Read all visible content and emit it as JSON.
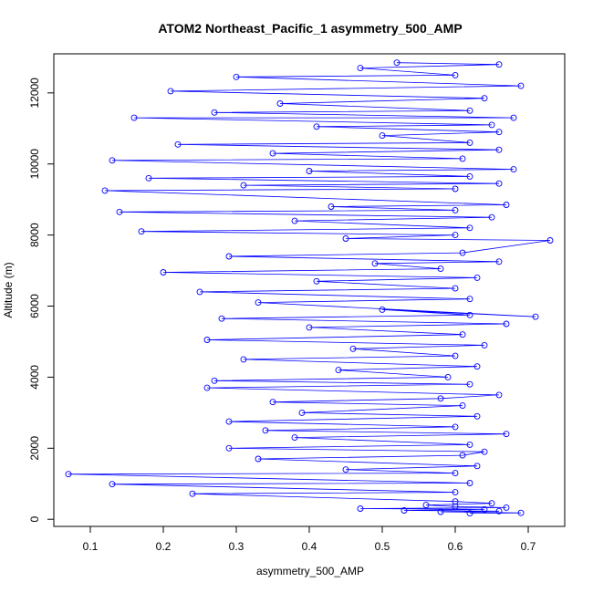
{
  "chart_data": {
    "type": "line",
    "title": "ATOM2 Northeast_Pacific_1 asymmetry_500_AMP",
    "xlabel": "asymmetry_500_AMP",
    "ylabel": "Altitude (m)",
    "xlim": [
      0.05,
      0.75
    ],
    "ylim": [
      -200,
      13100
    ],
    "x_ticks": [
      0.1,
      0.2,
      0.3,
      0.4,
      0.5,
      0.6,
      0.7
    ],
    "x_tick_labels": [
      "0.1",
      "0.2",
      "0.3",
      "0.4",
      "0.5",
      "0.6",
      "0.7"
    ],
    "y_ticks": [
      0,
      2000,
      4000,
      6000,
      8000,
      10000,
      12000
    ],
    "y_tick_labels": [
      "0",
      "2000",
      "4000",
      "6000",
      "8000",
      "10000",
      "12000"
    ],
    "grid": false,
    "legend": "none",
    "series": [
      {
        "color": "#0000ff",
        "marker": "open-circle",
        "line": true,
        "points": [
          [
            0.62,
            170
          ],
          [
            0.69,
            180
          ],
          [
            0.58,
            210
          ],
          [
            0.66,
            230
          ],
          [
            0.53,
            250
          ],
          [
            0.64,
            280
          ],
          [
            0.47,
            300
          ],
          [
            0.67,
            330
          ],
          [
            0.6,
            360
          ],
          [
            0.56,
            400
          ],
          [
            0.65,
            450
          ],
          [
            0.6,
            500
          ],
          [
            0.24,
            720
          ],
          [
            0.6,
            760
          ],
          [
            0.13,
            990
          ],
          [
            0.62,
            1020
          ],
          [
            0.07,
            1270
          ],
          [
            0.6,
            1300
          ],
          [
            0.45,
            1400
          ],
          [
            0.63,
            1500
          ],
          [
            0.33,
            1700
          ],
          [
            0.61,
            1800
          ],
          [
            0.64,
            1900
          ],
          [
            0.29,
            2000
          ],
          [
            0.62,
            2100
          ],
          [
            0.38,
            2300
          ],
          [
            0.67,
            2400
          ],
          [
            0.34,
            2500
          ],
          [
            0.6,
            2600
          ],
          [
            0.29,
            2750
          ],
          [
            0.63,
            2900
          ],
          [
            0.39,
            3000
          ],
          [
            0.61,
            3200
          ],
          [
            0.35,
            3300
          ],
          [
            0.58,
            3400
          ],
          [
            0.66,
            3500
          ],
          [
            0.26,
            3700
          ],
          [
            0.62,
            3800
          ],
          [
            0.27,
            3900
          ],
          [
            0.59,
            4000
          ],
          [
            0.44,
            4200
          ],
          [
            0.63,
            4300
          ],
          [
            0.31,
            4500
          ],
          [
            0.6,
            4600
          ],
          [
            0.46,
            4800
          ],
          [
            0.64,
            4900
          ],
          [
            0.26,
            5050
          ],
          [
            0.61,
            5200
          ],
          [
            0.4,
            5400
          ],
          [
            0.67,
            5500
          ],
          [
            0.28,
            5650
          ],
          [
            0.62,
            5750
          ],
          [
            0.5,
            5900
          ],
          [
            0.71,
            5700
          ],
          [
            0.33,
            6100
          ],
          [
            0.62,
            6200
          ],
          [
            0.25,
            6400
          ],
          [
            0.6,
            6500
          ],
          [
            0.41,
            6700
          ],
          [
            0.63,
            6800
          ],
          [
            0.2,
            6950
          ],
          [
            0.58,
            7050
          ],
          [
            0.49,
            7200
          ],
          [
            0.66,
            7250
          ],
          [
            0.29,
            7400
          ],
          [
            0.61,
            7500
          ],
          [
            0.73,
            7850
          ],
          [
            0.45,
            7900
          ],
          [
            0.6,
            8000
          ],
          [
            0.17,
            8100
          ],
          [
            0.62,
            8200
          ],
          [
            0.38,
            8400
          ],
          [
            0.65,
            8500
          ],
          [
            0.14,
            8650
          ],
          [
            0.6,
            8700
          ],
          [
            0.43,
            8800
          ],
          [
            0.67,
            8850
          ],
          [
            0.12,
            9250
          ],
          [
            0.6,
            9300
          ],
          [
            0.31,
            9400
          ],
          [
            0.66,
            9450
          ],
          [
            0.18,
            9600
          ],
          [
            0.62,
            9650
          ],
          [
            0.4,
            9800
          ],
          [
            0.68,
            9850
          ],
          [
            0.13,
            10100
          ],
          [
            0.61,
            10150
          ],
          [
            0.35,
            10300
          ],
          [
            0.66,
            10400
          ],
          [
            0.22,
            10550
          ],
          [
            0.62,
            10600
          ],
          [
            0.5,
            10800
          ],
          [
            0.66,
            10900
          ],
          [
            0.41,
            11050
          ],
          [
            0.65,
            11100
          ],
          [
            0.16,
            11300
          ],
          [
            0.68,
            11300
          ],
          [
            0.27,
            11450
          ],
          [
            0.62,
            11500
          ],
          [
            0.36,
            11700
          ],
          [
            0.64,
            11850
          ],
          [
            0.21,
            12050
          ],
          [
            0.69,
            12200
          ],
          [
            0.3,
            12450
          ],
          [
            0.6,
            12500
          ],
          [
            0.47,
            12700
          ],
          [
            0.66,
            12800
          ],
          [
            0.52,
            12850
          ]
        ]
      }
    ]
  }
}
